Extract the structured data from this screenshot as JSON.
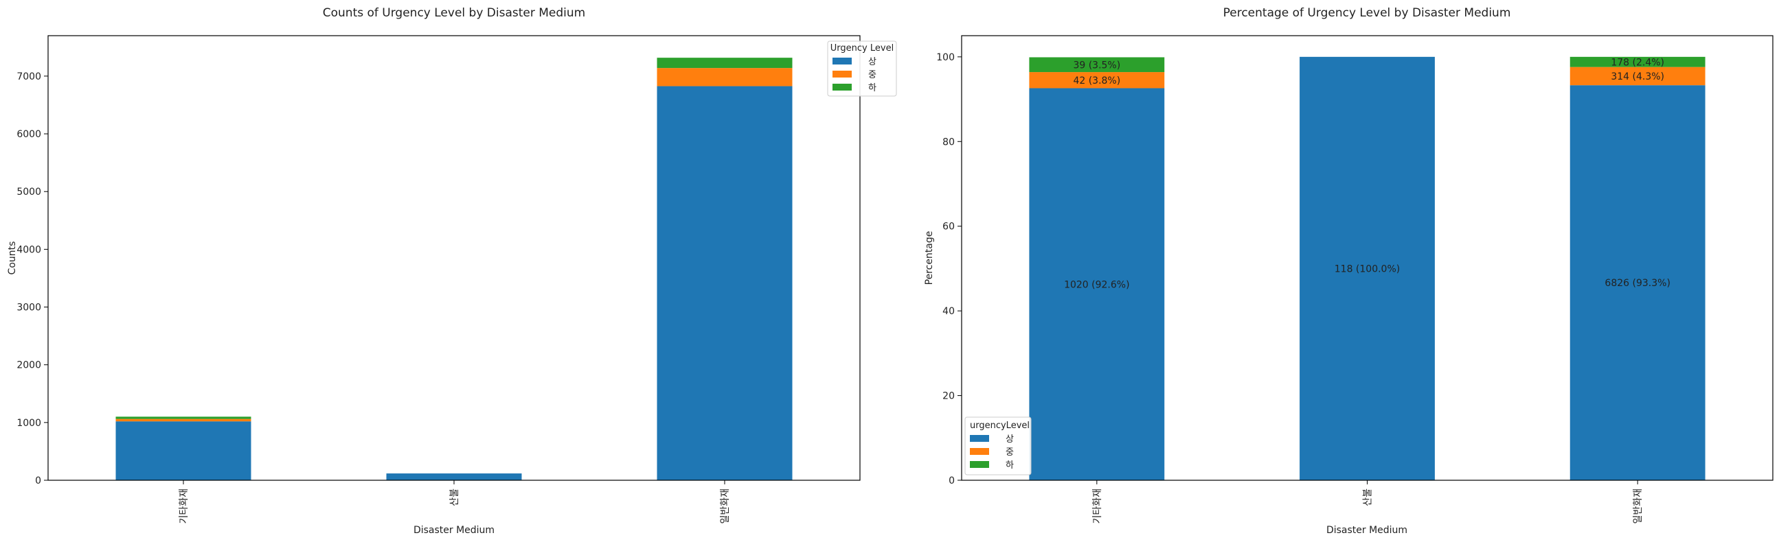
{
  "chart_data": [
    {
      "type": "bar",
      "stacked": true,
      "title": "Counts of Urgency Level by Disaster Medium",
      "xlabel": "Disaster Medium",
      "ylabel": "Counts",
      "categories": [
        "기타화재",
        "산불",
        "일반화재"
      ],
      "series": [
        {
          "name": "상",
          "values": [
            1020,
            118,
            6826
          ],
          "color": "#1f77b4"
        },
        {
          "name": "중",
          "values": [
            42,
            0,
            314
          ],
          "color": "#ff7f0e"
        },
        {
          "name": "하",
          "values": [
            39,
            0,
            178
          ],
          "color": "#2ca02c"
        }
      ],
      "ylim": [
        0,
        7700
      ],
      "yticks": [
        0,
        1000,
        2000,
        3000,
        4000,
        5000,
        6000,
        7000
      ],
      "legend": {
        "title": "Urgency Level",
        "placement": "upper-right-outside"
      },
      "grid": false
    },
    {
      "type": "bar",
      "stacked": true,
      "title": "Percentage of Urgency Level by Disaster Medium",
      "xlabel": "Disaster Medium",
      "ylabel": "Percentage",
      "categories": [
        "기타화재",
        "산불",
        "일반화재"
      ],
      "series": [
        {
          "name": "상",
          "values": [
            92.6,
            100.0,
            93.3
          ],
          "color": "#1f77b4"
        },
        {
          "name": "중",
          "values": [
            3.8,
            0,
            4.3
          ],
          "color": "#ff7f0e"
        },
        {
          "name": "하",
          "values": [
            3.5,
            0,
            2.4
          ],
          "color": "#2ca02c"
        }
      ],
      "bar_labels": [
        [
          "1020 (92.6%)",
          "118 (100.0%)",
          "6826 (93.3%)"
        ],
        [
          "42 (3.8%)",
          "",
          "314 (4.3%)"
        ],
        [
          "39 (3.5%)",
          "",
          "178 (2.4%)"
        ]
      ],
      "ylim": [
        0,
        105
      ],
      "yticks": [
        0,
        20,
        40,
        60,
        80,
        100
      ],
      "legend": {
        "title": "urgencyLevel",
        "placement": "lower-left"
      },
      "grid": false
    }
  ]
}
